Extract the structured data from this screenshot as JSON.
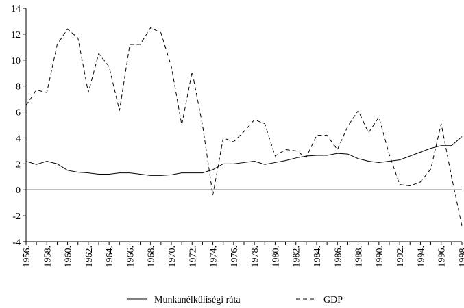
{
  "chart_data": {
    "type": "line",
    "categories": [
      "1956.",
      null,
      "1958.",
      null,
      "1960.",
      null,
      "1962.",
      null,
      "1964.",
      null,
      "1966.",
      null,
      "1968.",
      null,
      "1970.",
      null,
      "1972.",
      null,
      "1974.",
      null,
      "1976.",
      null,
      "1978.",
      null,
      "1980.",
      null,
      "1982.",
      null,
      "1984.",
      null,
      "1986.",
      null,
      "1988.",
      null,
      "1990.",
      null,
      "1992.",
      null,
      "1994.",
      null,
      "1996.",
      null,
      "1998."
    ],
    "series": [
      {
        "name": "Munkanélküliségi ráta",
        "color": "#000000",
        "dash": "solid",
        "values": [
          2.2,
          1.95,
          2.2,
          2.0,
          1.5,
          1.35,
          1.3,
          1.2,
          1.2,
          1.3,
          1.3,
          1.2,
          1.1,
          1.1,
          1.15,
          1.3,
          1.3,
          1.3,
          1.55,
          2.0,
          2.0,
          2.1,
          2.2,
          1.95,
          2.1,
          2.25,
          2.45,
          2.6,
          2.65,
          2.65,
          2.8,
          2.75,
          2.4,
          2.2,
          2.1,
          2.2,
          2.3,
          2.6,
          2.9,
          3.2,
          3.4,
          3.4,
          4.1
        ]
      },
      {
        "name": "GDP",
        "color": "#000000",
        "dash": "dashed",
        "values": [
          6.5,
          7.7,
          7.5,
          11.2,
          12.4,
          11.7,
          7.5,
          10.5,
          9.5,
          6.1,
          11.2,
          11.2,
          12.5,
          12.1,
          9.5,
          5.0,
          9.1,
          5.0,
          -0.4,
          4.0,
          3.7,
          4.5,
          5.4,
          5.1,
          2.6,
          3.1,
          3.0,
          2.5,
          4.2,
          4.2,
          3.1,
          4.9,
          6.1,
          4.4,
          5.6,
          2.7,
          0.4,
          0.3,
          0.6,
          1.6,
          5.1,
          1.0,
          -2.8
        ]
      }
    ],
    "ylim": [
      -4,
      14
    ],
    "yticks": [
      -4,
      -2,
      0,
      2,
      4,
      6,
      8,
      10,
      12,
      14
    ],
    "legend": "bottom"
  }
}
